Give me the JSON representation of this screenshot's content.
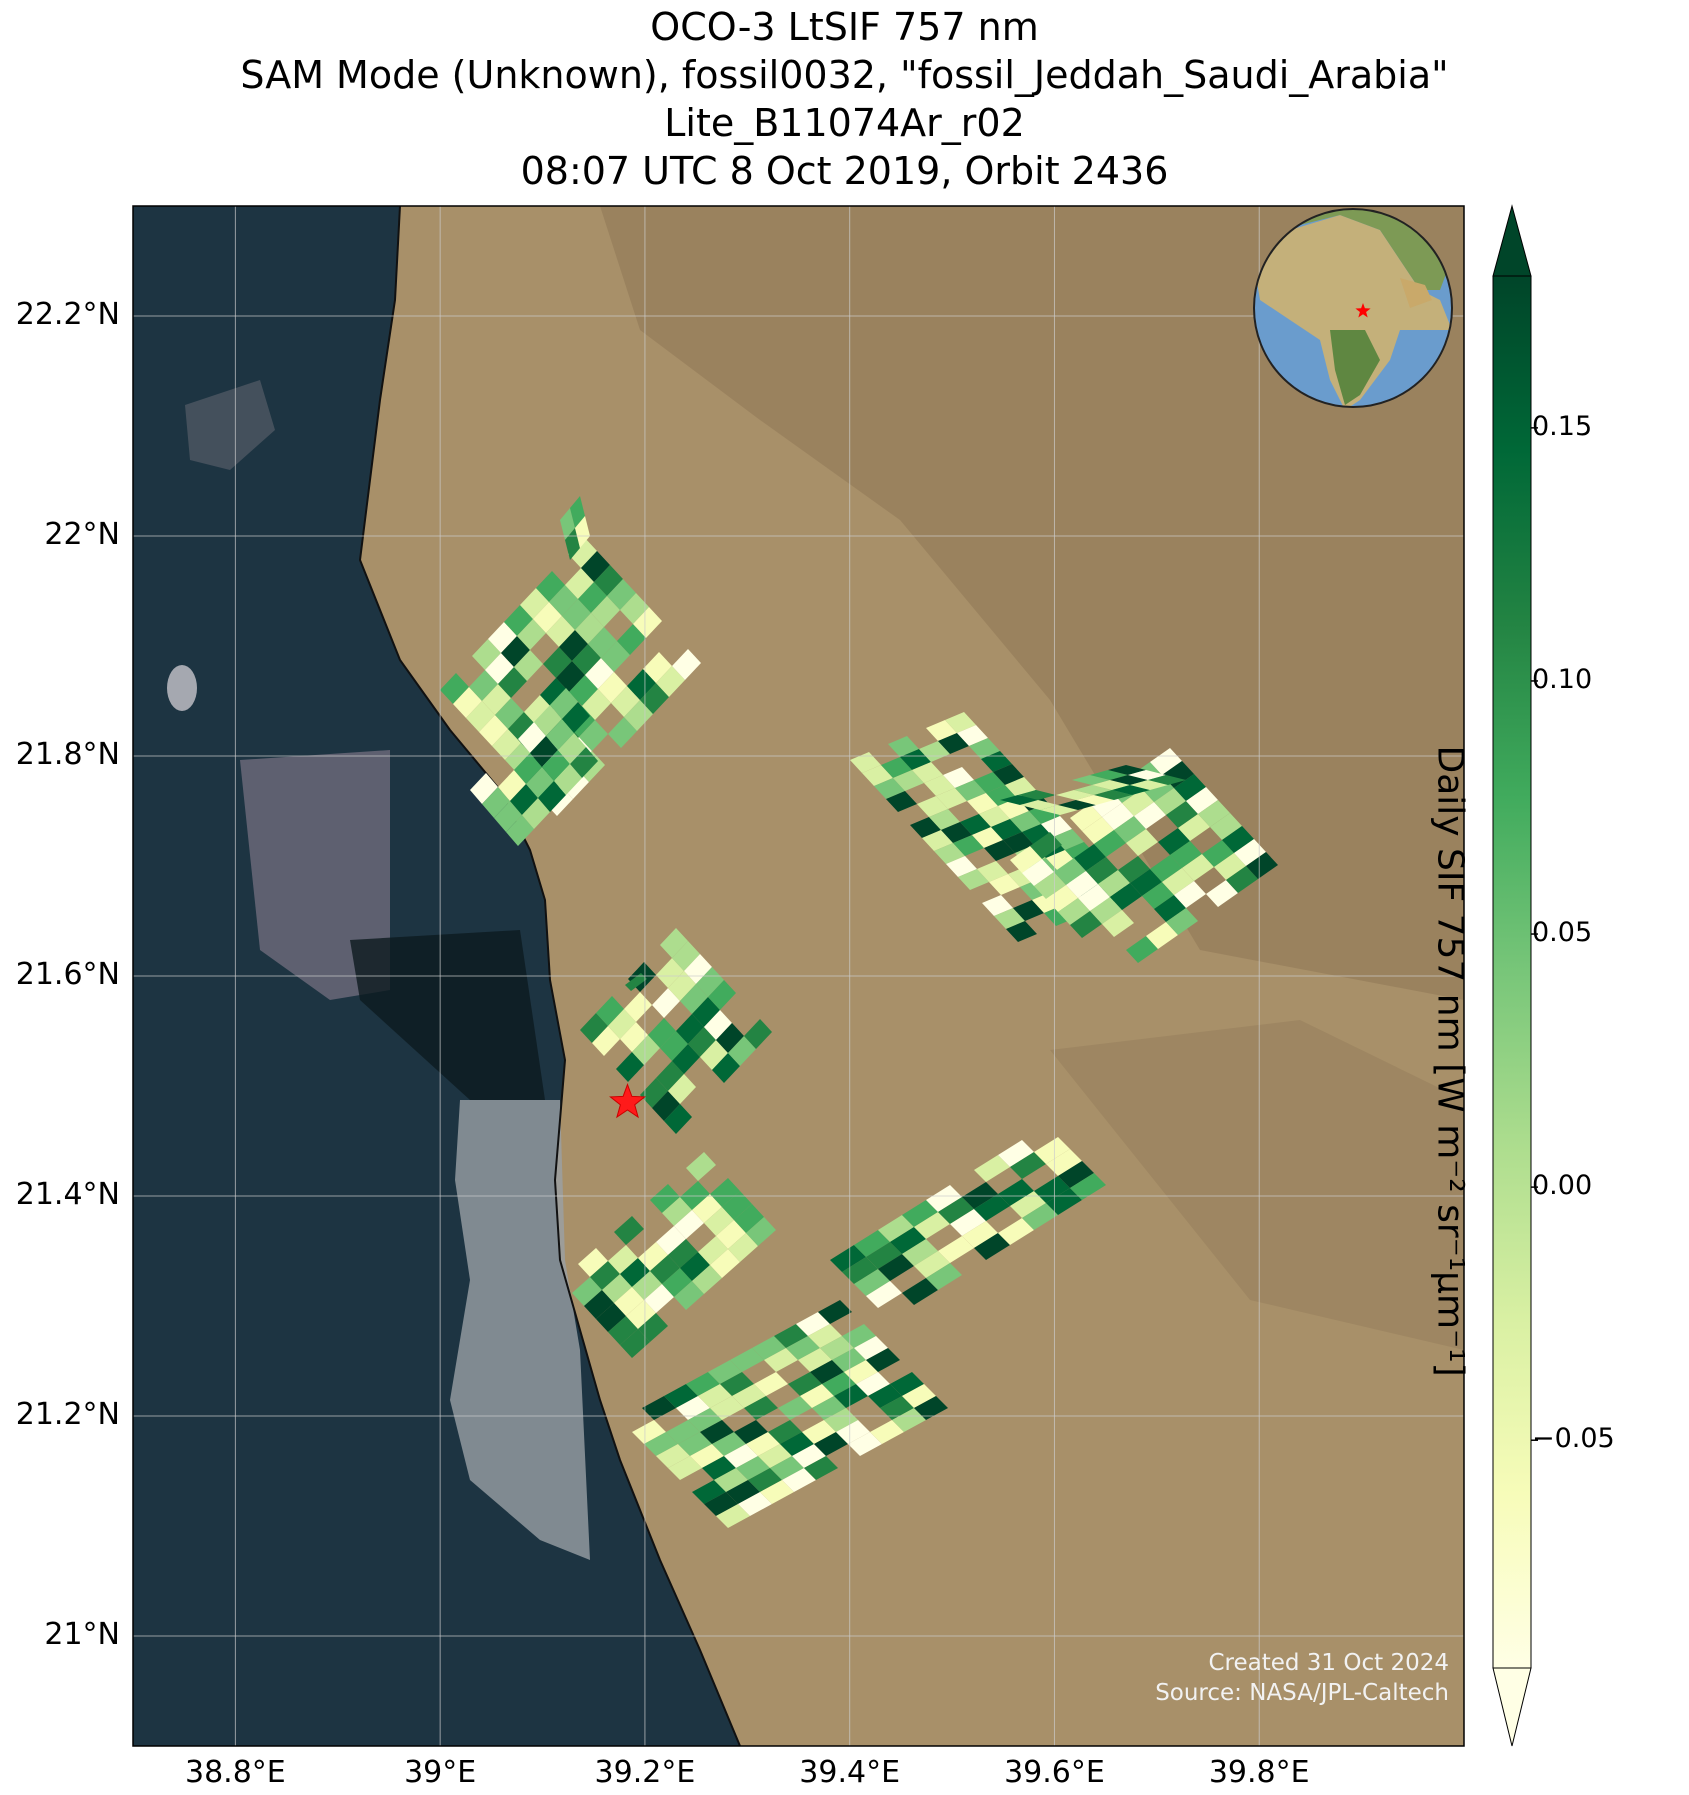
{
  "title": {
    "line1": "OCO-3 LtSIF 757 nm",
    "line2": "SAM Mode (Unknown), fossil0032, \"fossil_Jeddah_Saudi_Arabia\"",
    "line3": "Lite_B11074Ar_r02",
    "line4": "08:07 UTC 8 Oct 2019, Orbit 2436"
  },
  "map": {
    "lat_ticks": [
      "22.2°N",
      "22°N",
      "21.8°N",
      "21.6°N",
      "21.4°N",
      "21.2°N",
      "21°N"
    ],
    "lon_ticks": [
      "38.8°E",
      "39°E",
      "39.2°E",
      "39.4°E",
      "39.6°E",
      "39.8°E"
    ],
    "lat_values": [
      22.2,
      22.0,
      21.8,
      21.6,
      21.4,
      21.2,
      21.0
    ],
    "lon_values": [
      38.8,
      39.0,
      39.2,
      39.4,
      39.6,
      39.8
    ],
    "extent": {
      "lon": [
        38.7,
        40.0
      ],
      "lat": [
        20.9,
        22.3
      ]
    },
    "target": {
      "lon": 39.183,
      "lat": 21.485,
      "marker": "star",
      "color": "#ff0000"
    },
    "colors": {
      "sea": "#1e3340",
      "land": "#a58d66",
      "gridline": "#cccccc"
    }
  },
  "colorbar": {
    "label": "Daily SIF 757 nm [W m⁻² sr⁻¹μm⁻¹]",
    "ticks": [
      "0.15",
      "0.10",
      "0.05",
      "0.00",
      "−0.05"
    ],
    "tick_values": [
      0.15,
      0.1,
      0.05,
      0.0,
      -0.05
    ],
    "range": [
      -0.095,
      0.18
    ],
    "colormap": "YlGn",
    "extend": "both"
  },
  "inset": {
    "type": "globe",
    "marker": "red-star"
  },
  "credits": {
    "line1": "Created 31 Oct 2024",
    "line2": "Source: NASA/JPL-Caltech"
  }
}
